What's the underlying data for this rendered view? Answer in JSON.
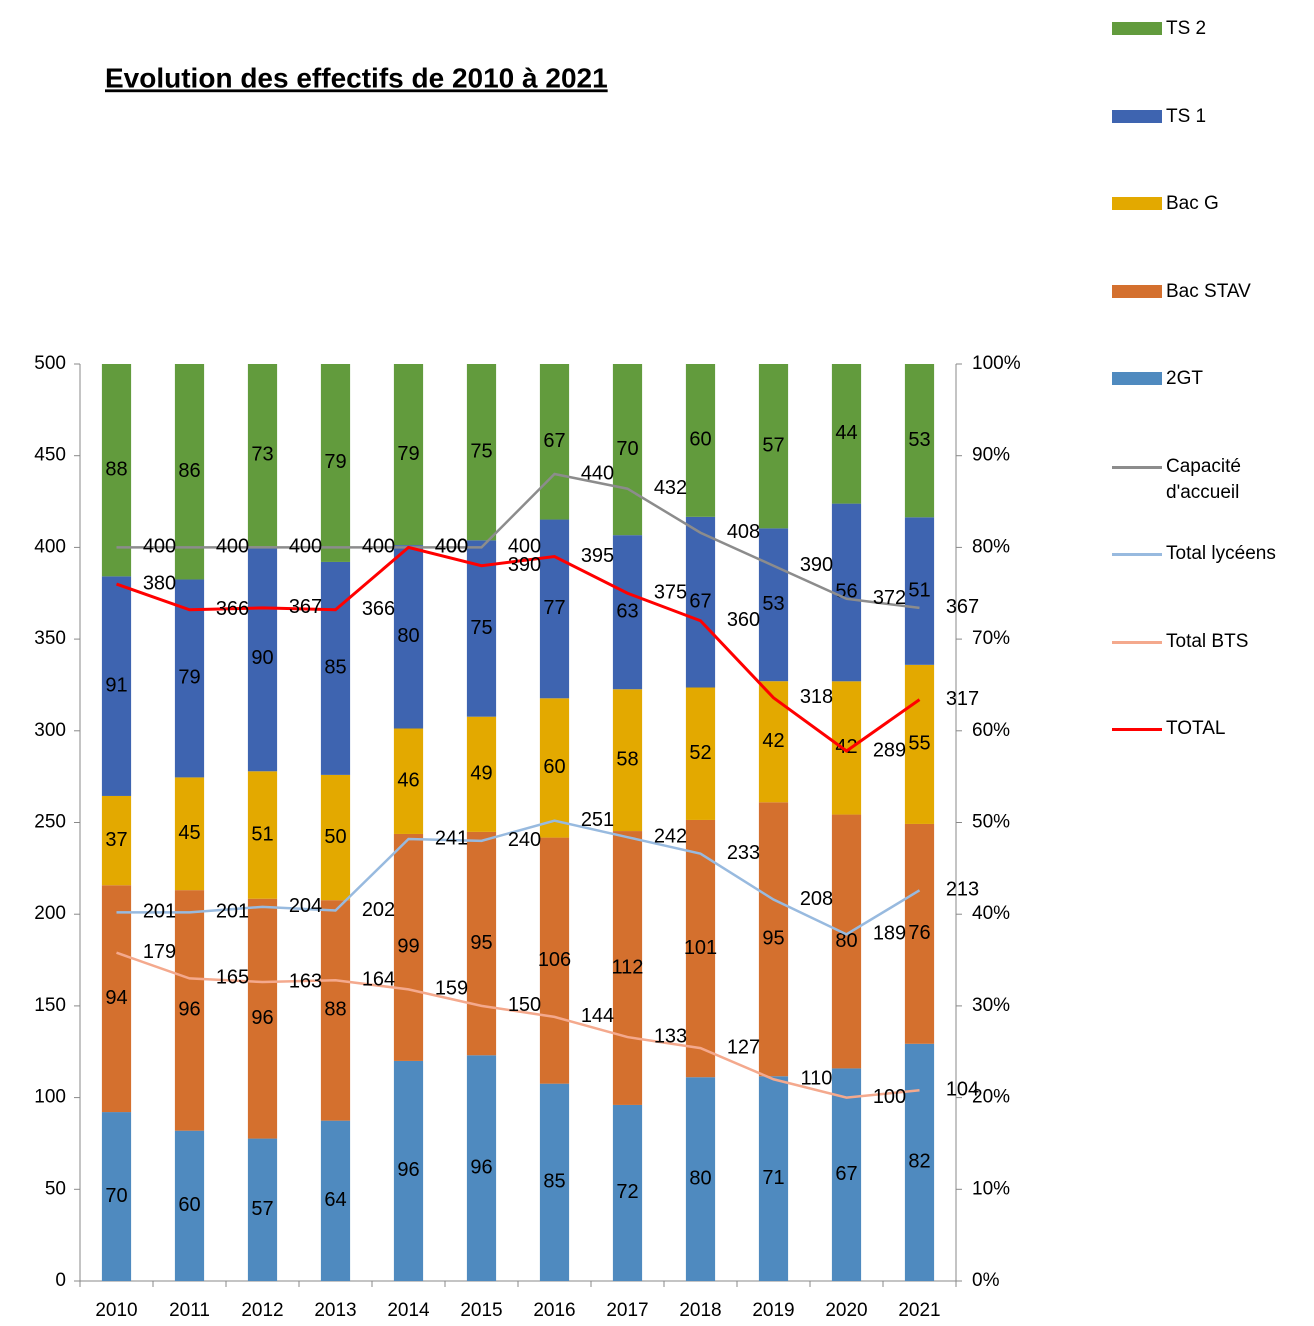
{
  "chart_data": {
    "type": "bar",
    "title": "Evolution des effectifs de 2010 à 2021",
    "stack": "percent",
    "categories": [
      "2010",
      "2011",
      "2012",
      "2013",
      "2014",
      "2015",
      "2016",
      "2017",
      "2018",
      "2019",
      "2020",
      "2021"
    ],
    "series": [
      {
        "name": "TS 2",
        "kind": "bar",
        "axis": "y2",
        "color": "#629b3d",
        "values": [
          88,
          86,
          73,
          79,
          79,
          75,
          67,
          70,
          60,
          57,
          44,
          53
        ]
      },
      {
        "name": "TS 1",
        "kind": "bar",
        "axis": "y2",
        "color": "#3e64b0",
        "values": [
          91,
          79,
          90,
          85,
          80,
          75,
          77,
          63,
          67,
          53,
          56,
          51
        ]
      },
      {
        "name": "Bac G",
        "kind": "bar",
        "axis": "y2",
        "color": "#e3a900",
        "values": [
          37,
          45,
          51,
          50,
          46,
          49,
          60,
          58,
          52,
          42,
          42,
          55
        ]
      },
      {
        "name": "Bac STAV",
        "kind": "bar",
        "axis": "y2",
        "color": "#d4702e",
        "values": [
          94,
          96,
          96,
          88,
          99,
          95,
          106,
          112,
          101,
          95,
          80,
          76
        ]
      },
      {
        "name": "2GT",
        "kind": "bar",
        "axis": "y2",
        "color": "#4f8abf",
        "values": [
          70,
          60,
          57,
          64,
          96,
          96,
          85,
          72,
          80,
          71,
          67,
          82
        ]
      },
      {
        "name": "Capacité d'accueil",
        "kind": "line",
        "color": "#8c8c8c",
        "values": [
          400,
          400,
          400,
          400,
          400,
          400,
          440,
          432,
          408,
          390,
          372,
          367
        ]
      },
      {
        "name": "Total lycéens",
        "kind": "line",
        "color": "#98badf",
        "values": [
          201,
          201,
          204,
          202,
          241,
          240,
          251,
          242,
          233,
          208,
          189,
          213
        ]
      },
      {
        "name": "Total BTS",
        "kind": "line",
        "color": "#f4a98d",
        "values": [
          179,
          165,
          163,
          164,
          159,
          150,
          144,
          133,
          127,
          110,
          100,
          104
        ]
      },
      {
        "name": "TOTAL",
        "kind": "line",
        "color": "#ff0000",
        "values": [
          380,
          366,
          367,
          366,
          400,
          390,
          395,
          375,
          360,
          318,
          289,
          317
        ]
      }
    ],
    "ylim": [
      0,
      500
    ],
    "yticks": [
      0,
      50,
      100,
      150,
      200,
      250,
      300,
      350,
      400,
      450,
      500
    ],
    "y2lim": [
      0,
      100
    ],
    "y2ticks": [
      {
        "value": 0,
        "label": "0%"
      },
      {
        "value": 10,
        "label": "10%"
      },
      {
        "value": 20,
        "label": "20%"
      },
      {
        "value": 30,
        "label": "30%"
      },
      {
        "value": 40,
        "label": "40%"
      },
      {
        "value": 50,
        "label": "50%"
      },
      {
        "value": 60,
        "label": "60%"
      },
      {
        "value": 70,
        "label": "70%"
      },
      {
        "value": 80,
        "label": "80%"
      },
      {
        "value": 90,
        "label": "90%"
      },
      {
        "value": 100,
        "label": "100%"
      }
    ],
    "legend": "right"
  }
}
